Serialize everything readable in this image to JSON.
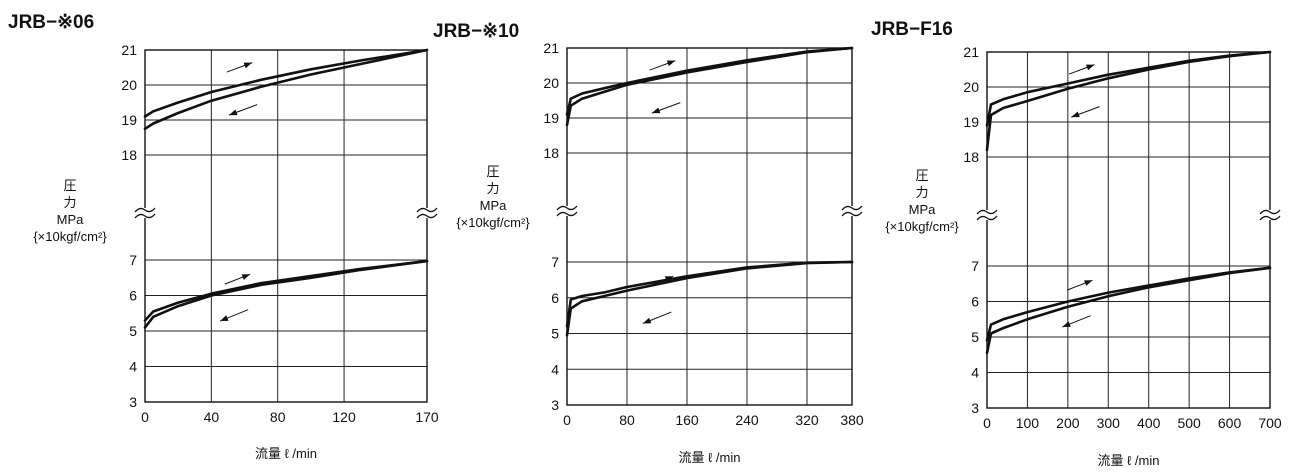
{
  "chart_data": [
    {
      "type": "line",
      "title": "JRB−※06",
      "ylabel": [
        "圧",
        "力",
        "MPa",
        "{×10kgf/cm²}"
      ],
      "xlabel": "流量 ℓ /min",
      "x_ticks": [
        0,
        40,
        80,
        120,
        170
      ],
      "xlim": [
        0,
        170
      ],
      "y_ticks_upper": [
        18,
        19,
        20,
        21
      ],
      "y_ticks_lower": [
        3,
        4,
        5,
        6,
        7
      ],
      "grid": true,
      "series": [
        {
          "x": [
            0,
            5,
            20,
            40,
            70,
            100,
            130,
            170
          ],
          "y": [
            19.1,
            19.25,
            19.5,
            19.8,
            20.15,
            20.45,
            20.7,
            21.0
          ]
        },
        {
          "x": [
            0,
            5,
            20,
            40,
            70,
            100,
            130,
            170
          ],
          "y": [
            18.75,
            18.9,
            19.2,
            19.55,
            19.95,
            20.3,
            20.6,
            21.0
          ]
        },
        {
          "x": [
            0,
            5,
            20,
            40,
            70,
            100,
            130,
            170
          ],
          "y": [
            5.3,
            5.55,
            5.8,
            6.05,
            6.35,
            6.55,
            6.75,
            6.97
          ]
        },
        {
          "x": [
            0,
            5,
            20,
            40,
            70,
            100,
            130,
            170
          ],
          "y": [
            5.1,
            5.4,
            5.7,
            6.0,
            6.3,
            6.5,
            6.72,
            6.97
          ]
        }
      ]
    },
    {
      "type": "line",
      "title": "JRB−※10",
      "ylabel": [
        "圧",
        "力",
        "MPa",
        "{×10kgf/cm²}"
      ],
      "xlabel": "流量 ℓ /min",
      "x_ticks": [
        0,
        80,
        160,
        240,
        320,
        380
      ],
      "xlim": [
        0,
        380
      ],
      "y_ticks_upper": [
        18,
        19,
        20,
        21
      ],
      "y_ticks_lower": [
        3,
        4,
        5,
        6,
        7
      ],
      "grid": true,
      "series": [
        {
          "x": [
            0,
            5,
            20,
            50,
            80,
            160,
            240,
            320,
            380
          ],
          "y": [
            19.1,
            19.55,
            19.7,
            19.85,
            20.0,
            20.35,
            20.65,
            20.9,
            21.0
          ]
        },
        {
          "x": [
            0,
            5,
            20,
            50,
            80,
            160,
            240,
            320,
            380
          ],
          "y": [
            18.8,
            19.35,
            19.55,
            19.75,
            19.95,
            20.3,
            20.6,
            20.88,
            21.0
          ]
        },
        {
          "x": [
            0,
            5,
            20,
            50,
            80,
            160,
            240,
            320,
            380
          ],
          "y": [
            5.2,
            5.95,
            6.05,
            6.15,
            6.3,
            6.6,
            6.85,
            6.98,
            7.0
          ]
        },
        {
          "x": [
            0,
            5,
            20,
            50,
            80,
            160,
            240,
            320,
            380
          ],
          "y": [
            4.95,
            5.7,
            5.9,
            6.05,
            6.2,
            6.55,
            6.82,
            6.97,
            7.0
          ]
        }
      ]
    },
    {
      "type": "line",
      "title": "JRB−F16",
      "ylabel": [
        "圧",
        "力",
        "MPa",
        "{×10kgf/cm²}"
      ],
      "xlabel": "流量 ℓ /min",
      "x_ticks": [
        0,
        100,
        200,
        300,
        400,
        500,
        600,
        700
      ],
      "xlim": [
        0,
        700
      ],
      "y_ticks_upper": [
        18,
        19,
        20,
        21
      ],
      "y_ticks_lower": [
        3,
        4,
        5,
        6,
        7
      ],
      "grid": true,
      "series": [
        {
          "x": [
            0,
            10,
            40,
            100,
            200,
            300,
            400,
            500,
            600,
            700
          ],
          "y": [
            18.9,
            19.5,
            19.65,
            19.85,
            20.1,
            20.35,
            20.55,
            20.75,
            20.9,
            21.0
          ]
        },
        {
          "x": [
            0,
            10,
            40,
            100,
            200,
            300,
            400,
            500,
            600,
            700
          ],
          "y": [
            18.2,
            19.2,
            19.4,
            19.6,
            19.95,
            20.25,
            20.5,
            20.72,
            20.88,
            21.0
          ]
        },
        {
          "x": [
            0,
            10,
            40,
            100,
            200,
            300,
            400,
            500,
            600,
            700
          ],
          "y": [
            4.9,
            5.35,
            5.5,
            5.7,
            6.0,
            6.25,
            6.45,
            6.65,
            6.82,
            6.95
          ]
        },
        {
          "x": [
            0,
            10,
            40,
            100,
            200,
            300,
            400,
            500,
            600,
            700
          ],
          "y": [
            4.55,
            5.1,
            5.25,
            5.5,
            5.85,
            6.15,
            6.4,
            6.6,
            6.8,
            6.95
          ]
        }
      ]
    }
  ]
}
